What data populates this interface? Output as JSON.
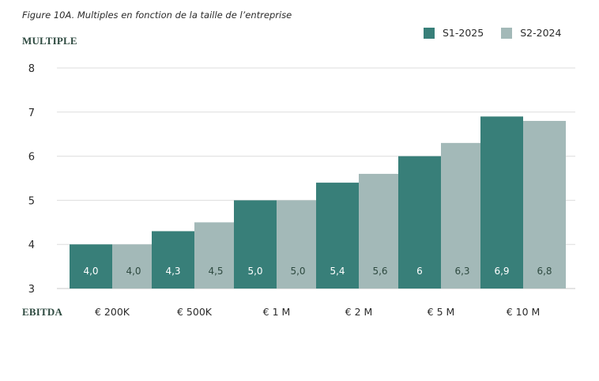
{
  "figure_caption": "Figure 10A. Multiples en fonction de la taille de l’entreprise",
  "colors": {
    "s1_2025": "#387f79",
    "s2_2024": "#a3b9b8",
    "grid": "#dddddd",
    "axis_title": "#2e4a40"
  },
  "chart_data": {
    "type": "bar",
    "title": "",
    "ylabel": "MULTIPLE",
    "xlabel": "EBITDA",
    "categories": [
      "€ 200K",
      "€ 500K",
      "€ 1 M",
      "€ 2 M",
      "€ 5 M",
      "€ 10 M"
    ],
    "ylim": [
      3,
      8
    ],
    "yticks": [
      "3",
      "4",
      "5",
      "6",
      "7",
      "8"
    ],
    "grid": true,
    "legend_position": "top-right",
    "series": [
      {
        "name": "S1-2025",
        "values": [
          4.0,
          4.3,
          5.0,
          5.4,
          6.0,
          6.9
        ],
        "labels": [
          "4,0",
          "4,3",
          "5,0",
          "5,4",
          "6",
          "6,9"
        ]
      },
      {
        "name": "S2-2024",
        "values": [
          4.0,
          4.5,
          5.0,
          5.6,
          6.3,
          6.8
        ],
        "labels": [
          "4,0",
          "4,5",
          "5,0",
          "5,6",
          "6,3",
          "6,8"
        ]
      }
    ]
  }
}
